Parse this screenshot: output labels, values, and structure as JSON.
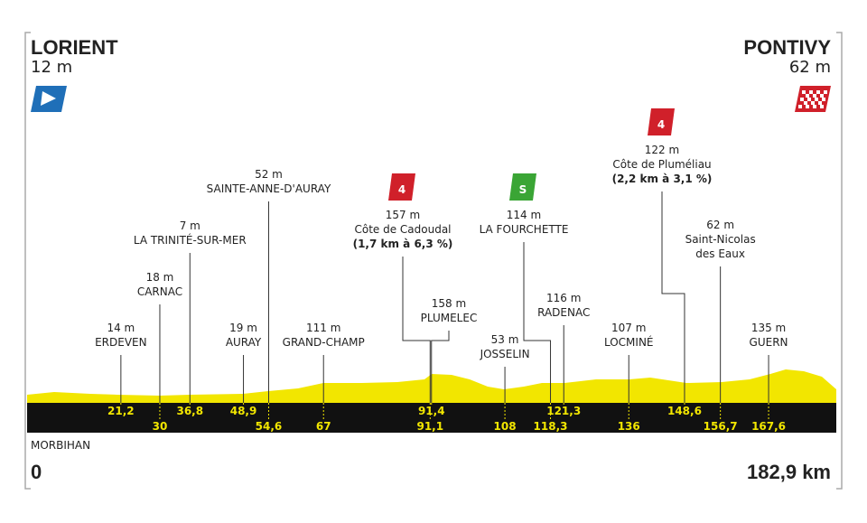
{
  "start": {
    "name": "LORIENT",
    "altitude": "12 m"
  },
  "finish": {
    "name": "PONTIVY",
    "altitude": "62 m"
  },
  "region": "MORBIHAN",
  "distance_start": "0",
  "distance_end": "182,9 km",
  "distance_total": 182.9,
  "waypoints": [
    {
      "km": {
        "value": 21.2,
        "label": "21,2"
      },
      "altitude": "14 m",
      "lines": [
        "ERDEVEN"
      ]
    },
    {
      "km": {
        "value": 30,
        "label": "30"
      },
      "altitude": "18 m",
      "lines": [
        "CARNAC"
      ]
    },
    {
      "km": {
        "value": 36.8,
        "label": "36,8"
      },
      "altitude": "7 m",
      "lines": [
        "LA TRINITÉ-SUR-MER"
      ]
    },
    {
      "km": {
        "value": 48.9,
        "label": "48,9"
      },
      "altitude": "19 m",
      "lines": [
        "AURAY"
      ]
    },
    {
      "km": {
        "value": 54.6,
        "label": "54,6"
      },
      "altitude": "52 m",
      "lines": [
        "SAINTE-ANNE-D'AURAY"
      ]
    },
    {
      "km": {
        "value": 67,
        "label": "67"
      },
      "altitude": "111 m",
      "lines": [
        "GRAND-CHAMP"
      ]
    },
    {
      "km": {
        "value": 91.1,
        "label": "91,1"
      },
      "altitude": "157 m",
      "lines": [
        "Côte de Cadoudal"
      ],
      "detail": "(1,7 km à 6,3 %)",
      "category": "4"
    },
    {
      "km": {
        "value": 91.4,
        "label": "91,4"
      },
      "altitude": "158 m",
      "lines": [
        "PLUMELEC"
      ]
    },
    {
      "km": {
        "value": 108,
        "label": "108"
      },
      "altitude": "53 m",
      "lines": [
        "JOSSELIN"
      ]
    },
    {
      "km": {
        "value": 118.3,
        "label": "118,3"
      },
      "altitude": "114 m",
      "lines": [
        "LA FOURCHETTE"
      ],
      "sprint": "S"
    },
    {
      "km": {
        "value": 121.3,
        "label": "121,3"
      },
      "altitude": "116 m",
      "lines": [
        "RADENAC"
      ]
    },
    {
      "km": {
        "value": 136,
        "label": "136"
      },
      "altitude": "107 m",
      "lines": [
        "LOCMINÉ"
      ]
    },
    {
      "km": {
        "value": 148.6,
        "label": "148,6"
      },
      "altitude": "122 m",
      "lines": [
        "Côte de Pluméliau"
      ],
      "detail": "(2,2 km à 3,1 %)",
      "category": "4"
    },
    {
      "km": {
        "value": 156.7,
        "label": "156,7"
      },
      "altitude": "62 m",
      "lines": [
        "Saint-Nicolas",
        "des Eaux"
      ]
    },
    {
      "km": {
        "value": 167.6,
        "label": "167,6"
      },
      "altitude": "135 m",
      "lines": [
        "GUERN"
      ]
    }
  ]
}
